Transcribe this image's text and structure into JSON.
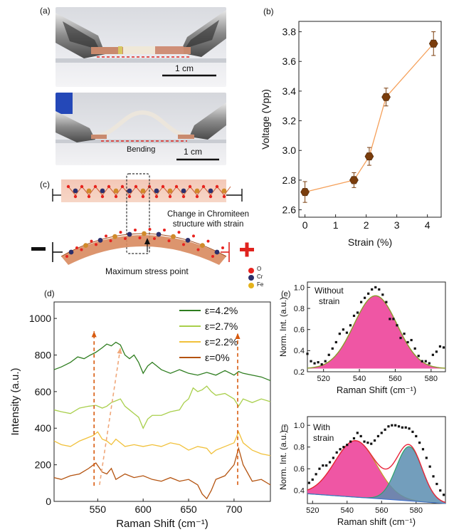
{
  "panels": {
    "a": {
      "label": "(a)",
      "photo1_scale": "1 cm",
      "photo2_scale": "1 cm",
      "photo2_text": "Bending"
    },
    "c": {
      "label": "(c)",
      "strain_note_line1": "Change in Chromiteen",
      "strain_note_line2": "structure with strain",
      "stress_label": "Maximum stress point",
      "legend": [
        {
          "symbol": "O",
          "color": "#e8231e"
        },
        {
          "symbol": "Cr",
          "color": "#2b2f6b"
        },
        {
          "symbol": "Fe",
          "color": "#e4b21b"
        }
      ],
      "minus_sign": "−",
      "plus_sign": "+"
    }
  },
  "chart_data": [
    {
      "id": "b",
      "panel_label": "(b)",
      "type": "scatter",
      "xlabel": "Strain (%)",
      "ylabel": "Voltage (Vpp)",
      "xlim": [
        -0.2,
        4.45
      ],
      "ylim": [
        2.55,
        3.87
      ],
      "xticks": [
        0,
        1,
        2,
        3,
        4
      ],
      "yticks": [
        2.6,
        2.8,
        3.0,
        3.2,
        3.4,
        3.6,
        3.8
      ],
      "color": "#f5a05a",
      "marker_color": "#7a3d0c",
      "series": [
        {
          "x": [
            0,
            1.6,
            2.1,
            2.65,
            4.2
          ],
          "y": [
            2.72,
            2.8,
            2.96,
            3.36,
            3.72
          ],
          "err": [
            0.07,
            0.05,
            0.06,
            0.06,
            0.08
          ]
        }
      ]
    },
    {
      "id": "d",
      "panel_label": "(d)",
      "type": "line",
      "xlabel": "Raman Shift (cm⁻¹)",
      "ylabel": "Intensity (a.u.)",
      "xlim": [
        502,
        740
      ],
      "ylim": [
        0,
        1090
      ],
      "xticks": [
        550,
        600,
        650,
        700
      ],
      "yticks": [
        0,
        200,
        400,
        600,
        800,
        1000
      ],
      "series": [
        {
          "name": "ε=4.2%",
          "color": "#2e7d1f",
          "x": [
            502,
            510,
            520,
            528,
            535,
            542,
            548,
            555,
            560,
            565,
            570,
            575,
            580,
            585,
            590,
            595,
            600,
            605,
            610,
            615,
            620,
            630,
            640,
            650,
            660,
            670,
            680,
            690,
            700,
            705,
            710,
            720,
            730,
            740
          ],
          "y": [
            720,
            735,
            760,
            790,
            780,
            800,
            815,
            840,
            860,
            850,
            870,
            855,
            800,
            780,
            800,
            760,
            700,
            740,
            760,
            740,
            720,
            700,
            720,
            700,
            690,
            705,
            690,
            715,
            690,
            710,
            700,
            690,
            680,
            660
          ]
        },
        {
          "name": "ε=2.7%",
          "color": "#a9cf4c",
          "x": [
            502,
            510,
            520,
            530,
            540,
            548,
            555,
            560,
            565,
            570,
            575,
            580,
            585,
            590,
            595,
            600,
            605,
            610,
            620,
            630,
            640,
            645,
            650,
            655,
            660,
            665,
            670,
            675,
            680,
            690,
            700,
            705,
            710,
            720,
            730,
            740
          ],
          "y": [
            500,
            490,
            480,
            510,
            520,
            525,
            510,
            520,
            540,
            550,
            560,
            520,
            500,
            480,
            460,
            400,
            450,
            470,
            470,
            490,
            500,
            540,
            560,
            620,
            600,
            610,
            630,
            600,
            580,
            590,
            560,
            520,
            560,
            540,
            560,
            545
          ]
        },
        {
          "name": "ε=2.2%",
          "color": "#f1c13b",
          "x": [
            502,
            510,
            520,
            530,
            540,
            545,
            550,
            555,
            560,
            565,
            570,
            575,
            580,
            590,
            600,
            610,
            620,
            630,
            640,
            650,
            660,
            670,
            675,
            680,
            690,
            700,
            705,
            710,
            720,
            730,
            740
          ],
          "y": [
            330,
            310,
            300,
            330,
            350,
            360,
            380,
            340,
            330,
            310,
            340,
            320,
            300,
            310,
            300,
            310,
            300,
            320,
            310,
            280,
            300,
            290,
            260,
            280,
            300,
            320,
            380,
            320,
            280,
            260,
            250
          ]
        },
        {
          "name": "ε=0%",
          "color": "#b4530f",
          "x": [
            502,
            510,
            520,
            530,
            540,
            548,
            555,
            560,
            565,
            570,
            580,
            590,
            600,
            610,
            620,
            630,
            640,
            650,
            660,
            665,
            670,
            675,
            680,
            690,
            700,
            705,
            710,
            720,
            730,
            740
          ],
          "y": [
            130,
            120,
            140,
            150,
            180,
            210,
            160,
            150,
            180,
            120,
            150,
            130,
            140,
            120,
            110,
            130,
            110,
            120,
            90,
            40,
            15,
            60,
            120,
            140,
            200,
            290,
            200,
            110,
            120,
            90
          ]
        }
      ],
      "annotations": [
        {
          "type": "arrow",
          "style": "dashed",
          "color": "#d85a0e",
          "x": [
            546,
            546
          ],
          "y": [
            85,
            930
          ]
        },
        {
          "type": "arrow",
          "style": "dashed",
          "color": "#f0a77a",
          "x": [
            552,
            575
          ],
          "y": [
            90,
            840
          ]
        },
        {
          "type": "arrow",
          "style": "dashed",
          "color": "#d85a0e",
          "x": [
            704,
            704
          ],
          "y": [
            90,
            920
          ]
        }
      ]
    },
    {
      "id": "e",
      "panel_label": "(e)",
      "type": "area",
      "inline_text": [
        "Without",
        "strain"
      ],
      "xlabel": "Raman Shift (cm⁻¹)",
      "ylabel": "Norm. Int. (a.u.)",
      "xlim": [
        511,
        588
      ],
      "ylim": [
        0.2,
        1.05
      ],
      "xticks": [
        520,
        540,
        560,
        580
      ],
      "yticks": [
        0.2,
        0.4,
        0.6,
        0.8,
        1.0
      ],
      "fit": {
        "center": 549,
        "sigma": 12,
        "amp": 0.92,
        "base": 0.23,
        "fill": "#ef56a4",
        "line": "#8a9a2a"
      },
      "points": {
        "x": [
          511,
          513,
          515,
          517,
          519,
          521,
          523,
          525,
          527,
          529,
          531,
          533,
          535,
          537,
          539,
          541,
          543,
          545,
          547,
          549,
          551,
          553,
          555,
          557,
          559,
          561,
          563,
          565,
          567,
          569,
          571,
          573,
          575,
          577,
          579,
          581,
          583,
          585,
          587
        ],
        "y": [
          0.37,
          0.3,
          0.28,
          0.29,
          0.27,
          0.3,
          0.36,
          0.42,
          0.48,
          0.56,
          0.6,
          0.57,
          0.64,
          0.73,
          0.76,
          0.86,
          0.9,
          0.94,
          0.98,
          1.0,
          0.98,
          0.93,
          0.86,
          0.7,
          0.7,
          0.64,
          0.52,
          0.56,
          0.48,
          0.5,
          0.42,
          0.35,
          0.3,
          0.3,
          0.28,
          0.36,
          0.39,
          0.44,
          0.43
        ]
      }
    },
    {
      "id": "f",
      "panel_label": "(f)",
      "type": "area",
      "inline_text": [
        "With",
        "strain"
      ],
      "xlabel": "Raman shift (cm⁻¹)",
      "ylabel": "Norm. Int. (a.u.)",
      "xlim": [
        517,
        597
      ],
      "ylim": [
        0.28,
        1.08
      ],
      "xticks": [
        520,
        540,
        560,
        580
      ],
      "yticks": [
        0.4,
        0.6,
        0.8,
        1.0
      ],
      "peaks": [
        {
          "center": 545,
          "sigma": 12,
          "amp": 0.52,
          "fill": "#ef56a4",
          "line": "#c2a022"
        },
        {
          "center": 576,
          "sigma": 7.5,
          "amp": 0.5,
          "fill": "#5a8db0",
          "line": "#2aa36b"
        }
      ],
      "baseline": {
        "y0": 0.37,
        "y1": 0.28,
        "line": "#3a70d0"
      },
      "envelope_color": "#e8233a",
      "points": {
        "x": [
          518,
          520,
          522,
          524,
          526,
          528,
          530,
          532,
          534,
          536,
          538,
          540,
          542,
          544,
          546,
          548,
          550,
          552,
          554,
          556,
          558,
          560,
          562,
          564,
          566,
          568,
          570,
          572,
          574,
          576,
          578,
          580,
          582,
          584,
          586,
          588,
          590,
          592,
          594,
          596
        ],
        "y": [
          0.47,
          0.5,
          0.55,
          0.6,
          0.63,
          0.63,
          0.66,
          0.7,
          0.75,
          0.78,
          0.8,
          0.82,
          0.85,
          0.88,
          0.93,
          0.9,
          0.85,
          0.84,
          0.83,
          0.86,
          0.9,
          0.93,
          0.96,
          0.99,
          1.0,
          1.0,
          0.99,
          0.98,
          0.98,
          0.97,
          0.94,
          0.9,
          0.84,
          0.78,
          0.7,
          0.62,
          0.53,
          0.46,
          0.4,
          0.36
        ]
      }
    }
  ]
}
